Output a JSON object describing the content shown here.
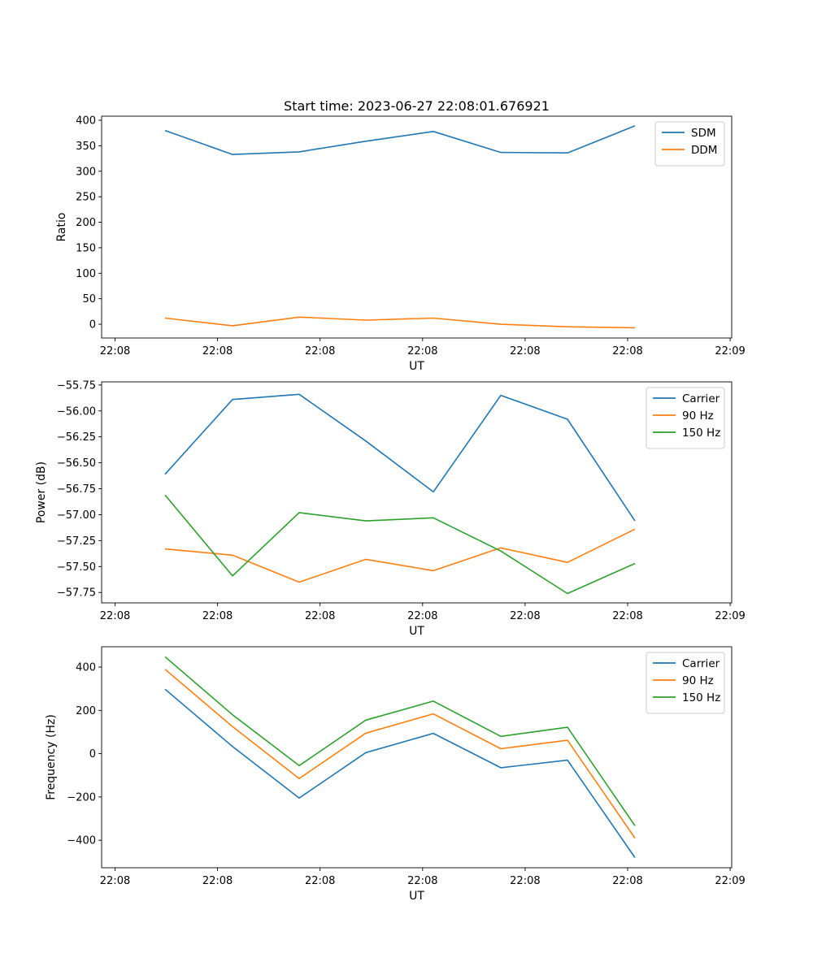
{
  "figure": {
    "title": "Start time: 2023-06-27 22:08:01.676921"
  },
  "chart_data": [
    {
      "type": "line",
      "xlabel": "UT",
      "ylabel": "Ratio",
      "x_tick_labels": [
        "22:08",
        "22:08",
        "22:08",
        "22:08",
        "22:08",
        "22:08",
        "22:09"
      ],
      "y_ticks": [
        0,
        50,
        100,
        150,
        200,
        250,
        300,
        350,
        400
      ],
      "ylim": [
        -27,
        408
      ],
      "legend": "top-right",
      "series": [
        {
          "name": "SDM",
          "color": "#1f77b4",
          "values": [
            380,
            333,
            338,
            359,
            378,
            337,
            336,
            389
          ]
        },
        {
          "name": "DDM",
          "color": "#ff7f0e",
          "values": [
            12,
            -3,
            14,
            8,
            12,
            0,
            -5,
            -7
          ]
        }
      ]
    },
    {
      "type": "line",
      "xlabel": "UT",
      "ylabel": "Power (dB)",
      "x_tick_labels": [
        "22:08",
        "22:08",
        "22:08",
        "22:08",
        "22:08",
        "22:08",
        "22:09"
      ],
      "y_ticks": [
        -57.75,
        -57.5,
        -57.25,
        -57.0,
        -56.75,
        -56.5,
        -56.25,
        -56.0,
        -55.75
      ],
      "y_tick_labels": [
        "−57.75",
        "−57.50",
        "−57.25",
        "−57.00",
        "−56.75",
        "−56.50",
        "−56.25",
        "−56.00",
        "−55.75"
      ],
      "ylim": [
        -57.85,
        -55.72
      ],
      "legend": "top-right",
      "series": [
        {
          "name": "Carrier",
          "color": "#1f77b4",
          "values": [
            -56.61,
            -55.89,
            -55.84,
            -56.29,
            -56.78,
            -55.85,
            -56.08,
            -57.06
          ]
        },
        {
          "name": "90 Hz",
          "color": "#ff7f0e",
          "values": [
            -57.33,
            -57.39,
            -57.65,
            -57.43,
            -57.54,
            -57.32,
            -57.46,
            -57.14
          ]
        },
        {
          "name": "150 Hz",
          "color": "#2ca02c",
          "values": [
            -56.81,
            -57.59,
            -56.98,
            -57.06,
            -57.03,
            -57.35,
            -57.76,
            -57.47
          ]
        }
      ]
    },
    {
      "type": "line",
      "xlabel": "UT",
      "ylabel": "Frequency (Hz)",
      "x_tick_labels": [
        "22:08",
        "22:08",
        "22:08",
        "22:08",
        "22:08",
        "22:08",
        "22:09"
      ],
      "y_ticks": [
        -400,
        -200,
        0,
        200,
        400
      ],
      "y_tick_labels": [
        "−400",
        "−200",
        "0",
        "200",
        "400"
      ],
      "ylim": [
        -527,
        494
      ],
      "legend": "top-right",
      "series": [
        {
          "name": "Carrier",
          "color": "#1f77b4",
          "values": [
            298,
            33,
            -205,
            5,
            94,
            -65,
            -30,
            -480
          ]
        },
        {
          "name": "90 Hz",
          "color": "#ff7f0e",
          "values": [
            390,
            125,
            -115,
            95,
            184,
            23,
            62,
            -390
          ]
        },
        {
          "name": "150 Hz",
          "color": "#2ca02c",
          "values": [
            448,
            180,
            -55,
            155,
            243,
            80,
            122,
            -333
          ]
        }
      ]
    }
  ]
}
